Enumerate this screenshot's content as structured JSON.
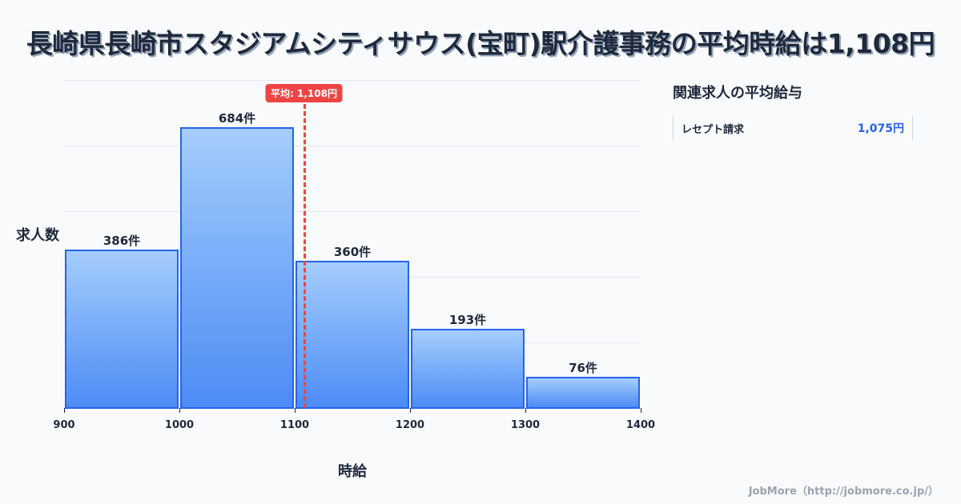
{
  "title": "長崎県長崎市スタジアムシティサウス(宝町)駅介護事務の平均時給は1,108円",
  "chart": {
    "ylabel": "求人数",
    "xlabel": "時給",
    "average_label": "平均: 1,108円",
    "tick_labels": [
      "900",
      "1000",
      "1100",
      "1200",
      "1300",
      "1400"
    ],
    "bar_labels": [
      "386件",
      "684件",
      "360件",
      "193件",
      "76件"
    ]
  },
  "sidebar": {
    "title": "関連求人の平均給与",
    "items": [
      {
        "label": "レセプト請求",
        "value": "1,075円"
      }
    ]
  },
  "footer": "JobMore（http://jobmore.co.jp/）",
  "colors": {
    "bar_fill_top": "#a5cdfd",
    "bar_fill_bottom": "#4c8cf5",
    "bar_border": "#2563eb",
    "average_line": "#ef4444",
    "accent_value": "#2563eb"
  },
  "chart_data": {
    "type": "bar",
    "title": "長崎県長崎市スタジアムシティサウス(宝町)駅介護事務の平均時給は1,108円",
    "xlabel": "時給",
    "ylabel": "求人数",
    "bins": [
      [
        900,
        1000
      ],
      [
        1000,
        1100
      ],
      [
        1100,
        1200
      ],
      [
        1200,
        1300
      ],
      [
        1300,
        1400
      ]
    ],
    "categories": [
      "900-1000",
      "1000-1100",
      "1100-1200",
      "1200-1300",
      "1300-1400"
    ],
    "values": [
      386,
      684,
      360,
      193,
      76
    ],
    "value_labels": [
      "386件",
      "684件",
      "360件",
      "193件",
      "76件"
    ],
    "x_ticks": [
      900,
      1000,
      1100,
      1200,
      1300,
      1400
    ],
    "ylim": [
      0,
      800
    ],
    "grid": true,
    "annotations": [
      {
        "type": "vline",
        "x": 1108,
        "label": "平均: 1,108円",
        "color": "#ef4444",
        "style": "dashed"
      }
    ]
  }
}
